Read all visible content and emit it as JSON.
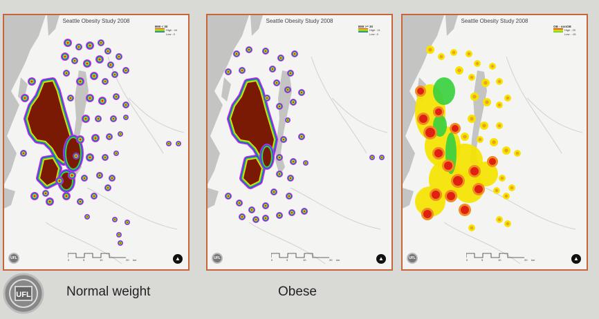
{
  "panels": [
    {
      "id": "normal",
      "title": "Seattle Obesity Study 2008",
      "legend_title": "BMI < 30",
      "legend_high": "High : 44",
      "legend_low": "Low : 0",
      "scheme": "rainbow"
    },
    {
      "id": "obese",
      "title": "Seattle Obesity Study 2008",
      "legend_title": "BMI >= 30",
      "legend_high": "High : 11",
      "legend_low": "Low : 0",
      "scheme": "rainbow"
    },
    {
      "id": "ratio",
      "title": "Seattle Obesity Study 2008",
      "legend_title": "OB - nonOB",
      "legend_high": "High : 20",
      "legend_low": "Low : -15",
      "scheme": "heat"
    }
  ],
  "scale_ticks": [
    "0",
    "5",
    "10",
    "20"
  ],
  "scale_unit": "km",
  "logo_text": "UFL",
  "captions": {
    "left": "Normal weight",
    "middle": "Obese"
  },
  "colors": {
    "frame": "#c8643a",
    "water": "#c4c4c2",
    "land": "#f4f4f2",
    "core": "#7a1a05",
    "red": "#e02010",
    "yellow": "#f4e400",
    "green": "#3ad040",
    "blue": "#3050e0",
    "purple": "#c030e0"
  }
}
